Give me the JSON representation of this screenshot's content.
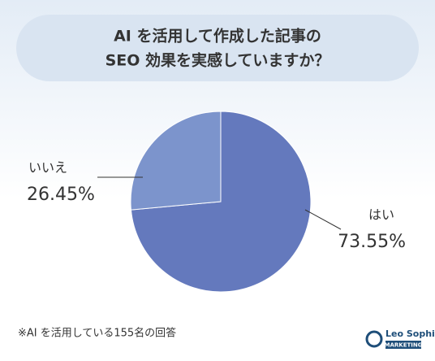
{
  "chart_data": {
    "type": "pie",
    "title": [
      "AI を活用して作成した記事の",
      "SEO 効果を実感していますか？"
    ],
    "categories": [
      "はい",
      "いいえ"
    ],
    "values": [
      73.55,
      26.45
    ],
    "value_labels": [
      "73.55%",
      "26.45%"
    ],
    "colors": [
      "#6479bd",
      "#7c94cc"
    ],
    "note": "※AI を活用している155名の回答"
  },
  "logo": {
    "name": "Leo Sophia",
    "tagline": "MARKETING"
  }
}
